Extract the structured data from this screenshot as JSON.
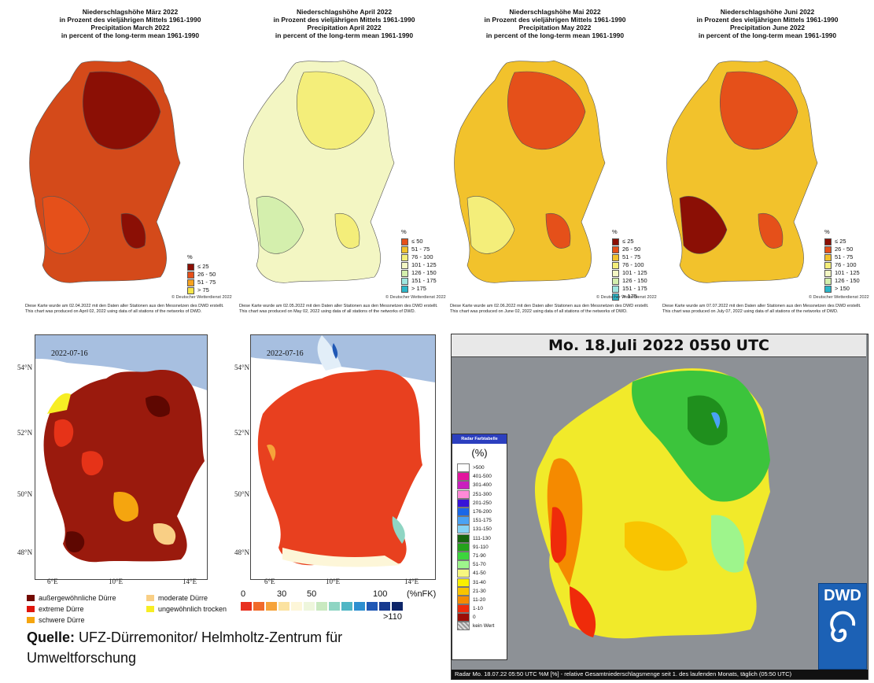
{
  "top_maps": [
    {
      "title_de_1": "Niederschlagshöhe März 2022",
      "title_de_2": "in Prozent des vieljährigen Mittels 1961-1990",
      "title_en_1": "Precipitation March 2022",
      "title_en_2": "in percent of the long-term mean 1961-1990",
      "legend_unit": "%",
      "legend": [
        {
          "label": "≤ 25",
          "color": "#8b0f05"
        },
        {
          "label": "26 - 50",
          "color": "#e5501a"
        },
        {
          "label": "51 - 75",
          "color": "#f6a21f"
        },
        {
          "label": "> 75",
          "color": "#f7e64a"
        }
      ],
      "copyright": "© Deutscher Wetterdienst 2022",
      "note_1": "Diese Karte wurde am 02.04.2022 mit den Daten aller Stationen aus den Messnetzen des DWD erstellt.",
      "note_2": "This chart was produced on April 02, 2022 using data of all stations of the networks of DWD."
    },
    {
      "title_de_1": "Niederschlagshöhe April 2022",
      "title_de_2": "in Prozent des vieljährigen Mittels 1961-1990",
      "title_en_1": "Precipitation April 2022",
      "title_en_2": "in percent of the long-term mean 1961-1990",
      "legend_unit": "%",
      "legend": [
        {
          "label": "≤ 50",
          "color": "#e5501a"
        },
        {
          "label": "51 - 75",
          "color": "#f2c22c"
        },
        {
          "label": "76 - 100",
          "color": "#f4ee7a"
        },
        {
          "label": "101 - 125",
          "color": "#f3f6c3"
        },
        {
          "label": "126 - 150",
          "color": "#d4efad"
        },
        {
          "label": "151 - 175",
          "color": "#9fe6e0"
        },
        {
          "label": "> 175",
          "color": "#2bb6c9"
        }
      ],
      "copyright": "© Deutscher Wetterdienst 2022",
      "note_1": "Diese Karte wurde am 02.05.2022 mit den Daten aller Stationen aus den Messnetzen des DWD erstellt.",
      "note_2": "This chart was produced on May 02, 2022 using data of all stations of the networks of DWD."
    },
    {
      "title_de_1": "Niederschlagshöhe Mai 2022",
      "title_de_2": "in Prozent des vieljährigen Mittels 1961-1990",
      "title_en_1": "Precipitation May 2022",
      "title_en_2": "in percent of the long-term mean 1961-1990",
      "legend_unit": "%",
      "legend": [
        {
          "label": "≤ 25",
          "color": "#8b0f05"
        },
        {
          "label": "26 - 50",
          "color": "#e5501a"
        },
        {
          "label": "51 - 75",
          "color": "#f2c22c"
        },
        {
          "label": "76 - 100",
          "color": "#f4ee7a"
        },
        {
          "label": "101 - 125",
          "color": "#f3f6c3"
        },
        {
          "label": "126 - 150",
          "color": "#d4efad"
        },
        {
          "label": "151 - 175",
          "color": "#9fe6e0"
        },
        {
          "label": "> 175",
          "color": "#2bb6c9"
        }
      ],
      "copyright": "© Deutscher Wetterdienst 2022",
      "note_1": "Diese Karte wurde am 02.06.2022 mit den Daten aller Stationen aus den Messnetzen des DWD erstellt.",
      "note_2": "This chart was produced on June 02, 2022 using data of all stations of the networks of DWD."
    },
    {
      "title_de_1": "Niederschlagshöhe Juni 2022",
      "title_de_2": "in Prozent des vieljährigen Mittels 1961-1990",
      "title_en_1": "Precipitation June 2022",
      "title_en_2": "in percent of the long-term mean 1961-1990",
      "legend_unit": "%",
      "legend": [
        {
          "label": "≤ 25",
          "color": "#8b0f05"
        },
        {
          "label": "26 - 50",
          "color": "#e5501a"
        },
        {
          "label": "51 - 75",
          "color": "#f2c22c"
        },
        {
          "label": "76 - 100",
          "color": "#f4ee7a"
        },
        {
          "label": "101 - 125",
          "color": "#f3f6c3"
        },
        {
          "label": "126 - 150",
          "color": "#d4efad"
        },
        {
          "label": "> 150",
          "color": "#2bb6c9"
        }
      ],
      "copyright": "© Deutscher Wetterdienst 2022",
      "note_1": "Diese Karte wurde am 07.07.2022 mit den Daten aller Stationen aus den Messnetzen des DWD erstellt.",
      "note_2": "This chart was produced on July 07, 2022 using data of all stations of the networks of DWD."
    }
  ],
  "drought_maps": {
    "date_1": "2022-07-16",
    "date_2": "2022-07-16",
    "lat_ticks": [
      "54°N",
      "52°N",
      "50°N",
      "48°N"
    ],
    "lon_ticks": [
      "6°E",
      "10°E",
      "14°E"
    ],
    "legend_left": [
      {
        "label": "außergewöhnliche Dürre",
        "color": "#730a02"
      },
      {
        "label": "extreme Dürre",
        "color": "#e0160c"
      },
      {
        "label": "schwere Dürre",
        "color": "#f5a50f"
      }
    ],
    "legend_right": [
      {
        "label": "moderate Dürre",
        "color": "#f9cf85"
      },
      {
        "label": "ungewöhnlich trocken",
        "color": "#f7ee24"
      }
    ],
    "nfk_scale": {
      "labels": [
        "0",
        "30",
        "50",
        "100",
        "(%nFK)",
        ">110"
      ],
      "colors": [
        "#e8301f",
        "#f16a2a",
        "#f6a33a",
        "#fbe2a0",
        "#fdf6d8",
        "#eef6dc",
        "#c9e9c0",
        "#8fd5c3",
        "#4fb6c5",
        "#2d8fd0",
        "#2058b5",
        "#173a8f",
        "#0d2569"
      ]
    },
    "source_label": "Quelle:",
    "source_text": "UFZ-Dürremonitor/ Helmholtz-Zentrum für",
    "source_text_2": "Umweltforschung"
  },
  "radar": {
    "title": "Mo. 18.Juli 2022 0550 UTC",
    "legend_header": "Radar Farbtabelle",
    "legend_unit": "(%)",
    "legend": [
      {
        "label": ">500",
        "color": "#ffffff"
      },
      {
        "label": "401-500",
        "color": "#e2159e"
      },
      {
        "label": "301-400",
        "color": "#c91fbe"
      },
      {
        "label": "251-300",
        "color": "#ff8ad8"
      },
      {
        "label": "201-250",
        "color": "#3713d8"
      },
      {
        "label": "176-200",
        "color": "#1a67e8"
      },
      {
        "label": "151-175",
        "color": "#4aa2f4"
      },
      {
        "label": "131-150",
        "color": "#86d3f5"
      },
      {
        "label": "111-130",
        "color": "#17660f"
      },
      {
        "label": "91-110",
        "color": "#24a31b"
      },
      {
        "label": "71-90",
        "color": "#3cd63c"
      },
      {
        "label": "51-70",
        "color": "#9ef58c"
      },
      {
        "label": "41-50",
        "color": "#f7f77f"
      },
      {
        "label": "31-40",
        "color": "#f9f000"
      },
      {
        "label": "21-30",
        "color": "#f9c400"
      },
      {
        "label": "11-20",
        "color": "#f58a00"
      },
      {
        "label": "1-10",
        "color": "#ef2b0a"
      },
      {
        "label": "0",
        "color": "#9c0e06"
      },
      {
        "label": "kein Wert",
        "color": "#bbbbbb"
      }
    ],
    "logo_text": "DWD",
    "footer": "Radar   Mo. 18.07.22 05:50 UTC   %M [%] - relative Gesamtniederschlagsmenge seit 1. des laufenden Monats, täglich (05:50 UTC)"
  }
}
